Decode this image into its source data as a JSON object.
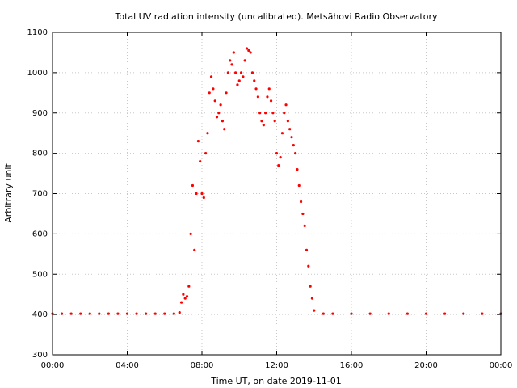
{
  "chart_data": {
    "type": "scatter",
    "title": "Total UV radiation intensity (uncalibrated). Metsähovi Radio Observatory",
    "xlabel": "Time UT, on date 2019-11-01",
    "ylabel": "Arbitrary unit",
    "xlim": [
      0,
      24
    ],
    "ylim": [
      300,
      1100
    ],
    "grid": true,
    "x_ticks": [
      0,
      4,
      8,
      12,
      16,
      20,
      24
    ],
    "x_tick_labels": [
      "00:00",
      "04:00",
      "08:00",
      "12:00",
      "16:00",
      "20:00",
      "00:00"
    ],
    "y_ticks": [
      300,
      400,
      500,
      600,
      700,
      800,
      900,
      1000,
      1100
    ],
    "y_tick_labels": [
      "300",
      "400",
      "500",
      "600",
      "700",
      "800",
      "900",
      "1000",
      "1100"
    ],
    "series": [
      {
        "color": "#ff0000",
        "x": [
          0.0,
          0.5,
          1.0,
          1.5,
          2.0,
          2.5,
          3.0,
          3.5,
          4.0,
          4.5,
          5.0,
          5.5,
          6.0,
          6.5,
          6.8,
          6.9,
          7.0,
          7.1,
          7.2,
          7.3,
          7.4,
          7.5,
          7.6,
          7.7,
          7.8,
          7.9,
          8.0,
          8.1,
          8.2,
          8.3,
          8.4,
          8.5,
          8.6,
          8.7,
          8.8,
          8.9,
          9.0,
          9.1,
          9.2,
          9.3,
          9.4,
          9.5,
          9.6,
          9.7,
          9.8,
          9.9,
          10.0,
          10.1,
          10.2,
          10.3,
          10.4,
          10.5,
          10.6,
          10.7,
          10.8,
          10.9,
          11.0,
          11.1,
          11.2,
          11.3,
          11.4,
          11.5,
          11.6,
          11.7,
          11.8,
          11.9,
          12.0,
          12.1,
          12.2,
          12.3,
          12.4,
          12.5,
          12.6,
          12.7,
          12.8,
          12.9,
          13.0,
          13.1,
          13.2,
          13.3,
          13.4,
          13.5,
          13.6,
          13.7,
          13.8,
          13.9,
          14.0,
          14.5,
          15.0,
          16.0,
          17.0,
          18.0,
          19.0,
          20.0,
          21.0,
          22.0,
          23.0,
          24.0
        ],
        "y": [
          402,
          402,
          402,
          402,
          402,
          402,
          402,
          402,
          402,
          402,
          402,
          402,
          402,
          402,
          405,
          430,
          450,
          440,
          445,
          470,
          600,
          720,
          560,
          700,
          830,
          780,
          700,
          690,
          800,
          850,
          950,
          990,
          960,
          930,
          890,
          900,
          920,
          880,
          860,
          950,
          1000,
          1030,
          1020,
          1050,
          1000,
          970,
          980,
          1000,
          990,
          1030,
          1060,
          1055,
          1050,
          1000,
          980,
          960,
          940,
          900,
          880,
          870,
          900,
          940,
          960,
          930,
          900,
          880,
          800,
          770,
          790,
          850,
          900,
          920,
          880,
          860,
          840,
          820,
          800,
          760,
          720,
          680,
          650,
          620,
          560,
          520,
          470,
          440,
          410,
          402,
          402,
          402,
          402,
          402,
          402,
          402,
          402,
          402,
          402,
          402
        ]
      }
    ]
  }
}
